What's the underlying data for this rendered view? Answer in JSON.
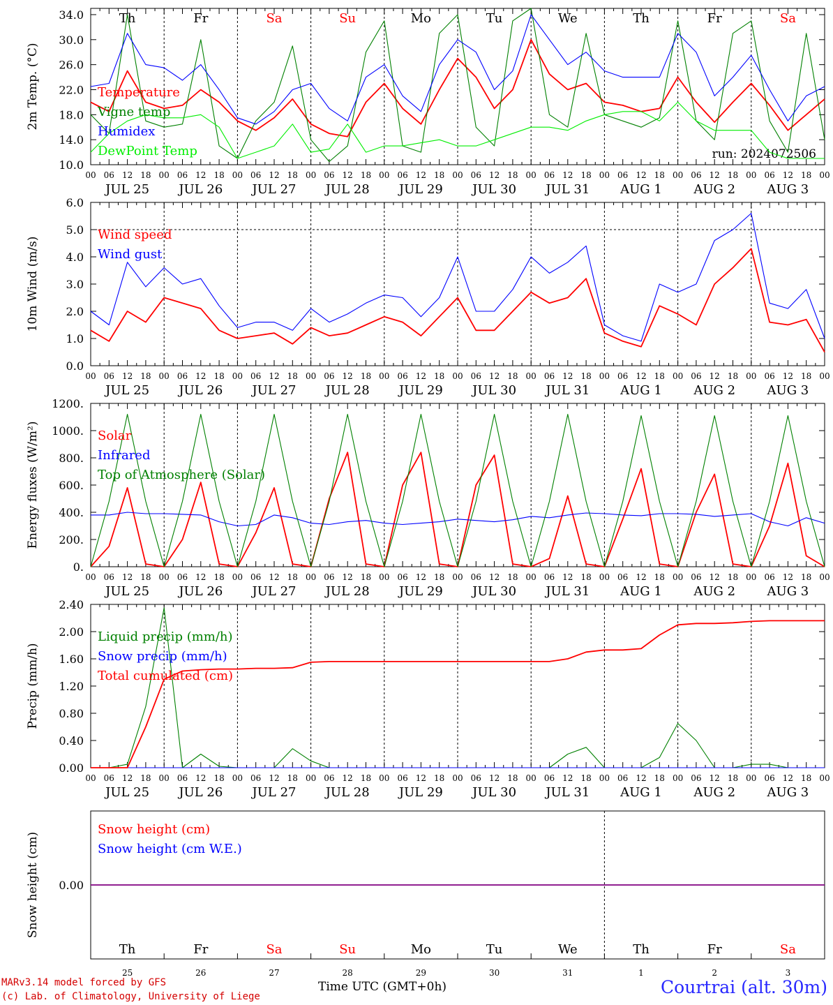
{
  "footer": {
    "credit_line1": "MARv3.14 model forced by GFS",
    "credit_line2": "(c) Lab. of Climatology, University of Liege",
    "time_label": "Time UTC (GMT+0h)",
    "station": "Courtrai (alt. 30m)",
    "run": "run: 2024072506"
  },
  "days": {
    "weekday": [
      "Th",
      "Fr",
      "Sa",
      "Su",
      "Mo",
      "Tu",
      "We",
      "Th",
      "Fr",
      "Sa"
    ],
    "weekend": [
      false,
      false,
      true,
      true,
      false,
      false,
      false,
      false,
      false,
      true
    ],
    "dates": [
      "JUL 25",
      "JUL 26",
      "JUL 27",
      "JUL 28",
      "JUL 29",
      "JUL 30",
      "JUL 31",
      "AUG  1",
      "AUG  2",
      "AUG  3"
    ],
    "daynums": [
      "25",
      "26",
      "27",
      "28",
      "29",
      "30",
      "31",
      "1",
      "2",
      "3"
    ],
    "hour_ticks": [
      "00",
      "06",
      "12",
      "18"
    ]
  },
  "colors": {
    "red": "#ff0000",
    "green": "#008000",
    "blue": "#0000ff",
    "lightgreen": "#00ee00",
    "purple": "#800080"
  },
  "chart_data": [
    {
      "type": "line",
      "ylabel": "2m Temp. (°C)",
      "ylim": [
        10,
        35
      ],
      "yticks": [
        "10.0",
        "14.0",
        "18.0",
        "22.0",
        "26.0",
        "30.0",
        "34.0"
      ],
      "x_unit": "hours since JUL 25 00 UTC",
      "x": [
        0,
        6,
        12,
        18,
        24,
        30,
        36,
        42,
        48,
        54,
        60,
        66,
        72,
        78,
        84,
        90,
        96,
        102,
        108,
        114,
        120,
        126,
        132,
        138,
        144,
        150,
        156,
        162,
        168,
        174,
        180,
        186,
        192,
        198,
        204,
        210,
        216,
        222,
        228,
        234,
        240
      ],
      "series": [
        {
          "name": "Temperature",
          "color": "red",
          "values": [
            20,
            18.5,
            25,
            20,
            19,
            19.5,
            22,
            20,
            17,
            15.5,
            17.5,
            20.5,
            16.5,
            15,
            14.5,
            20,
            23,
            19,
            16.5,
            22,
            27,
            24,
            19,
            22,
            30,
            24.5,
            22,
            23,
            20,
            19.5,
            18.5,
            19,
            24,
            20,
            16.8,
            20,
            23,
            19.5,
            15.5,
            18,
            20.5
          ]
        },
        {
          "name": "Vigne temp",
          "color": "green",
          "values": [
            18,
            15,
            34,
            17,
            16,
            16.5,
            30,
            13,
            11,
            17,
            20,
            29,
            14,
            10.5,
            13,
            28,
            33,
            13,
            12,
            31,
            34,
            16,
            13,
            33,
            35,
            18,
            16,
            31,
            18,
            17,
            16,
            17.5,
            33,
            17,
            14,
            31,
            33,
            17,
            12,
            31,
            14
          ]
        },
        {
          "name": "Humidex",
          "color": "blue",
          "values": [
            22.5,
            23,
            31,
            26,
            25.5,
            23.5,
            26,
            22,
            17.5,
            16.5,
            18.5,
            22,
            23,
            19,
            17,
            24,
            26,
            21,
            18.5,
            26,
            30,
            28,
            22,
            25,
            34,
            30,
            26,
            28,
            25,
            24,
            24,
            24,
            31,
            28,
            21,
            24,
            27.5,
            22,
            17,
            21,
            22.5
          ]
        },
        {
          "name": "DewPoint Temp",
          "color": "lightgreen",
          "values": [
            12,
            15,
            17,
            18,
            17.5,
            17.5,
            18,
            16,
            11,
            12,
            13,
            16.5,
            12,
            12.5,
            16.5,
            12,
            13,
            13,
            13.5,
            14,
            13,
            13,
            14,
            15,
            16,
            16,
            15.5,
            17,
            18,
            18.5,
            18.5,
            17,
            20,
            17,
            15.5,
            15.5,
            15.5,
            12,
            11,
            11,
            11
          ]
        }
      ],
      "legend": [
        "Temperature",
        "Vigne temp",
        "Humidex",
        "DewPoint Temp"
      ]
    },
    {
      "type": "line",
      "ylabel": "10m Wind (m/s)",
      "ylim": [
        0,
        6
      ],
      "yticks": [
        "0.0",
        "1.0",
        "2.0",
        "3.0",
        "4.0",
        "5.0",
        "6.0"
      ],
      "x": [
        0,
        6,
        12,
        18,
        24,
        30,
        36,
        42,
        48,
        54,
        60,
        66,
        72,
        78,
        84,
        90,
        96,
        102,
        108,
        114,
        120,
        126,
        132,
        138,
        144,
        150,
        156,
        162,
        168,
        174,
        180,
        186,
        192,
        198,
        204,
        210,
        216,
        222,
        228,
        234,
        240
      ],
      "series": [
        {
          "name": "Wind speed",
          "color": "red",
          "values": [
            1.3,
            0.9,
            2.0,
            1.6,
            2.5,
            2.3,
            2.1,
            1.3,
            1.0,
            1.1,
            1.2,
            0.8,
            1.4,
            1.1,
            1.2,
            1.5,
            1.8,
            1.6,
            1.1,
            1.8,
            2.5,
            1.3,
            1.3,
            2.0,
            2.7,
            2.3,
            2.5,
            3.2,
            1.2,
            0.9,
            0.7,
            2.2,
            1.9,
            1.5,
            3.0,
            3.6,
            4.3,
            1.6,
            1.5,
            1.7,
            0.5
          ]
        },
        {
          "name": "Wind gust",
          "color": "blue",
          "values": [
            2.0,
            1.5,
            3.8,
            2.9,
            3.6,
            3.0,
            3.2,
            2.2,
            1.4,
            1.6,
            1.6,
            1.3,
            2.1,
            1.6,
            1.9,
            2.3,
            2.6,
            2.5,
            1.8,
            2.5,
            4.0,
            2.0,
            2.0,
            2.8,
            4.0,
            3.4,
            3.8,
            4.4,
            1.5,
            1.1,
            0.9,
            3.0,
            2.7,
            3.0,
            4.6,
            5.0,
            5.6,
            2.3,
            2.1,
            2.8,
            1.0
          ]
        }
      ],
      "legend": [
        "Wind speed",
        "Wind gust"
      ]
    },
    {
      "type": "line",
      "ylabel": "Energy fluxes (W/m²)",
      "ylim": [
        0,
        1200
      ],
      "yticks": [
        "0.",
        "200.",
        "400.",
        "600.",
        "800.",
        "1000.",
        "1200."
      ],
      "x": [
        0,
        6,
        12,
        18,
        24,
        30,
        36,
        42,
        48,
        54,
        60,
        66,
        72,
        78,
        84,
        90,
        96,
        102,
        108,
        114,
        120,
        126,
        132,
        138,
        144,
        150,
        156,
        162,
        168,
        174,
        180,
        186,
        192,
        198,
        204,
        210,
        216,
        222,
        228,
        234,
        240
      ],
      "series": [
        {
          "name": "Solar",
          "color": "red",
          "values": [
            0,
            150,
            580,
            20,
            0,
            200,
            620,
            20,
            0,
            250,
            580,
            20,
            0,
            500,
            840,
            20,
            0,
            600,
            840,
            20,
            0,
            600,
            820,
            20,
            0,
            60,
            520,
            20,
            0,
            350,
            720,
            20,
            0,
            400,
            680,
            20,
            0,
            300,
            760,
            80,
            0
          ]
        },
        {
          "name": "Infrared",
          "color": "blue",
          "values": [
            380,
            380,
            400,
            390,
            390,
            385,
            380,
            330,
            300,
            310,
            380,
            360,
            320,
            310,
            330,
            340,
            320,
            310,
            320,
            330,
            350,
            340,
            330,
            345,
            370,
            360,
            380,
            395,
            390,
            380,
            375,
            390,
            390,
            385,
            370,
            380,
            390,
            330,
            300,
            360,
            320
          ]
        },
        {
          "name": "Top of Atmosphere (Solar)",
          "color": "green",
          "values": [
            0,
            480,
            1120,
            480,
            0,
            480,
            1120,
            480,
            0,
            480,
            1120,
            480,
            0,
            480,
            1120,
            480,
            0,
            480,
            1120,
            480,
            0,
            480,
            1120,
            480,
            0,
            480,
            1120,
            480,
            0,
            480,
            1110,
            480,
            0,
            480,
            1110,
            480,
            0,
            480,
            1110,
            480,
            0
          ]
        }
      ],
      "legend": [
        "Solar",
        "Infrared",
        "Top of Atmosphere (Solar)"
      ]
    },
    {
      "type": "line",
      "ylabel": "Precip (mm/h)",
      "ylim": [
        0,
        2.4
      ],
      "yticks": [
        "0.00",
        "0.40",
        "0.80",
        "1.20",
        "1.60",
        "2.00",
        "2.40"
      ],
      "x": [
        0,
        6,
        12,
        18,
        24,
        30,
        36,
        42,
        48,
        54,
        60,
        66,
        72,
        78,
        84,
        90,
        96,
        102,
        108,
        114,
        120,
        126,
        132,
        138,
        144,
        150,
        156,
        162,
        168,
        174,
        180,
        186,
        192,
        198,
        204,
        210,
        216,
        222,
        228,
        234,
        240
      ],
      "series": [
        {
          "name": "Liquid precip (mm/h)",
          "color": "green",
          "values": [
            0,
            0,
            0.05,
            0.9,
            2.35,
            0,
            0.2,
            0.02,
            0,
            0,
            0,
            0.28,
            0.1,
            0,
            0,
            0,
            0,
            0,
            0,
            0,
            0,
            0,
            0,
            0,
            0,
            0,
            0.2,
            0.3,
            0,
            0,
            0,
            0.15,
            0.65,
            0.4,
            0,
            0,
            0.05,
            0.05,
            0,
            0,
            0
          ]
        },
        {
          "name": "Snow precip (mm/h)",
          "color": "blue",
          "values": [
            0,
            0,
            0,
            0,
            0,
            0,
            0,
            0,
            0,
            0,
            0,
            0,
            0,
            0,
            0,
            0,
            0,
            0,
            0,
            0,
            0,
            0,
            0,
            0,
            0,
            0,
            0,
            0,
            0,
            0,
            0,
            0,
            0,
            0,
            0,
            0,
            0,
            0,
            0,
            0,
            0
          ]
        },
        {
          "name": "Total cumulated (cm)",
          "color": "red",
          "values": [
            0,
            0,
            0,
            0.6,
            1.3,
            1.42,
            1.44,
            1.45,
            1.45,
            1.46,
            1.46,
            1.47,
            1.55,
            1.56,
            1.56,
            1.56,
            1.56,
            1.56,
            1.56,
            1.56,
            1.56,
            1.56,
            1.56,
            1.56,
            1.56,
            1.56,
            1.6,
            1.7,
            1.73,
            1.73,
            1.75,
            1.95,
            2.1,
            2.12,
            2.12,
            2.13,
            2.15,
            2.16,
            2.16,
            2.16,
            2.16
          ]
        }
      ],
      "legend": [
        "Liquid precip (mm/h)",
        "Snow precip (mm/h)",
        "Total cumulated (cm)"
      ]
    },
    {
      "type": "line",
      "ylabel": "Snow height (cm)",
      "ylim": [
        -1,
        1
      ],
      "yticks": [
        "0.00"
      ],
      "x": [
        0,
        240
      ],
      "series": [
        {
          "name": "Snow height (cm)",
          "color": "red",
          "values": [
            0,
            0
          ]
        },
        {
          "name": "Snow height (cm W.E.)",
          "color": "blue",
          "values": [
            0,
            0
          ]
        }
      ],
      "legend": [
        "Snow height (cm)",
        "Snow height (cm W.E.)"
      ]
    }
  ]
}
